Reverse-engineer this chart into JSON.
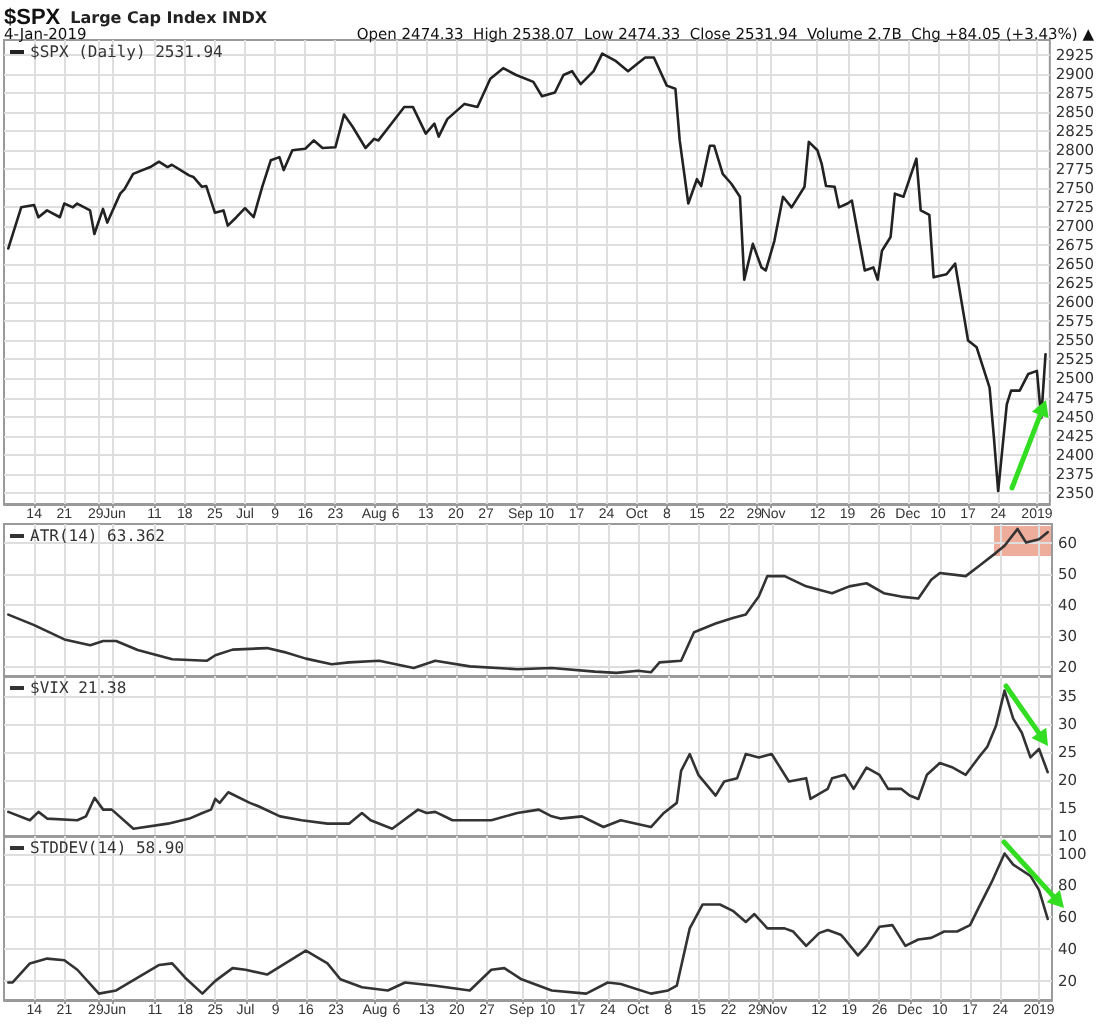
{
  "chart_data": [
    {
      "type": "line",
      "title": "$SPX",
      "subtitle": "Large Cap Index INDX",
      "annotations": [
        "4-Jan-2019",
        "Open 2474.33  High 2538.07  Low 2474.33  Close 2531.94  Volume 2.7B  Chg +84.05 (+3.43%) ▲"
      ],
      "legend": "top left",
      "grid": true,
      "xlim": [
        "2018-05-07",
        "2019-01-05"
      ],
      "xticks": [
        {
          "value": "2018-05-14",
          "label": "14"
        },
        {
          "value": "2018-05-21",
          "label": "21"
        },
        {
          "value": "2018-05-29",
          "label": "29"
        },
        {
          "value": "2018-06-01",
          "label": "Jun"
        },
        {
          "value": "2018-06-11",
          "label": "11"
        },
        {
          "value": "2018-06-18",
          "label": "18"
        },
        {
          "value": "2018-06-25",
          "label": "25"
        },
        {
          "value": "2018-07-02",
          "label": "Jul"
        },
        {
          "value": "2018-07-09",
          "label": "9"
        },
        {
          "value": "2018-07-16",
          "label": "16"
        },
        {
          "value": "2018-07-23",
          "label": "23"
        },
        {
          "value": "2018-08-01",
          "label": "Aug"
        },
        {
          "value": "2018-08-06",
          "label": "6"
        },
        {
          "value": "2018-08-13",
          "label": "13"
        },
        {
          "value": "2018-08-20",
          "label": "20"
        },
        {
          "value": "2018-08-27",
          "label": "27"
        },
        {
          "value": "2018-09-04",
          "label": "Sep"
        },
        {
          "value": "2018-09-10",
          "label": "10"
        },
        {
          "value": "2018-09-17",
          "label": "17"
        },
        {
          "value": "2018-09-24",
          "label": "24"
        },
        {
          "value": "2018-10-01",
          "label": "Oct"
        },
        {
          "value": "2018-10-08",
          "label": "8"
        },
        {
          "value": "2018-10-15",
          "label": "15"
        },
        {
          "value": "2018-10-22",
          "label": "22"
        },
        {
          "value": "2018-10-29",
          "label": "29"
        },
        {
          "value": "2018-11-01",
          "label": "Nov"
        },
        {
          "value": "2018-11-12",
          "label": "12"
        },
        {
          "value": "2018-11-19",
          "label": "19"
        },
        {
          "value": "2018-11-26",
          "label": "26"
        },
        {
          "value": "2018-12-03",
          "label": "Dec"
        },
        {
          "value": "2018-12-10",
          "label": "10"
        },
        {
          "value": "2018-12-17",
          "label": "17"
        },
        {
          "value": "2018-12-24",
          "label": "24"
        },
        {
          "value": "2019-01-02",
          "label": "2019"
        }
      ],
      "ylim": [
        2335,
        2945
      ],
      "yticks": [
        2350,
        2375,
        2400,
        2425,
        2450,
        2475,
        2500,
        2525,
        2550,
        2575,
        2600,
        2625,
        2650,
        2675,
        2700,
        2725,
        2750,
        2775,
        2800,
        2825,
        2850,
        2875,
        2900,
        2925
      ],
      "series": [
        {
          "name": "$SPX (Daily) 2531.94",
          "color": "#222222",
          "x": [
            "2018-05-08",
            "2018-05-11",
            "2018-05-14",
            "2018-05-15",
            "2018-05-17",
            "2018-05-20",
            "2018-05-21",
            "2018-05-23",
            "2018-05-24",
            "2018-05-27",
            "2018-05-28",
            "2018-05-30",
            "2018-05-31",
            "2018-06-03",
            "2018-06-04",
            "2018-06-06",
            "2018-06-10",
            "2018-06-12",
            "2018-06-14",
            "2018-06-15",
            "2018-06-19",
            "2018-06-20",
            "2018-06-22",
            "2018-06-23",
            "2018-06-25",
            "2018-06-27",
            "2018-06-28",
            "2018-06-30",
            "2018-07-02",
            "2018-07-04",
            "2018-07-06",
            "2018-07-08",
            "2018-07-10",
            "2018-07-11",
            "2018-07-13",
            "2018-07-16",
            "2018-07-18",
            "2018-07-20",
            "2018-07-23",
            "2018-07-25",
            "2018-07-27",
            "2018-07-30",
            "2018-08-01",
            "2018-08-02",
            "2018-08-05",
            "2018-08-08",
            "2018-08-10",
            "2018-08-13",
            "2018-08-15",
            "2018-08-16",
            "2018-08-18",
            "2018-08-22",
            "2018-08-25",
            "2018-08-28",
            "2018-08-31",
            "2018-09-03",
            "2018-09-07",
            "2018-09-09",
            "2018-09-12",
            "2018-09-14",
            "2018-09-16",
            "2018-09-18",
            "2018-09-21",
            "2018-09-23",
            "2018-09-26",
            "2018-09-29",
            "2018-10-01",
            "2018-10-03",
            "2018-10-05",
            "2018-10-08",
            "2018-10-10",
            "2018-10-11",
            "2018-10-13",
            "2018-10-15",
            "2018-10-16",
            "2018-10-18",
            "2018-10-19",
            "2018-10-21",
            "2018-10-23",
            "2018-10-25",
            "2018-10-26",
            "2018-10-28",
            "2018-10-30",
            "2018-10-31",
            "2018-11-02",
            "2018-11-04",
            "2018-11-06",
            "2018-11-09",
            "2018-11-10",
            "2018-11-12",
            "2018-11-13",
            "2018-11-14",
            "2018-11-16",
            "2018-11-17",
            "2018-11-19",
            "2018-11-20",
            "2018-11-21",
            "2018-11-23",
            "2018-11-25",
            "2018-11-26",
            "2018-11-27",
            "2018-11-29",
            "2018-11-30",
            "2018-12-02",
            "2018-12-05",
            "2018-12-06",
            "2018-12-08",
            "2018-12-09",
            "2018-12-12",
            "2018-12-14",
            "2018-12-17",
            "2018-12-19",
            "2018-12-22",
            "2018-12-23",
            "2018-12-24",
            "2018-12-26",
            "2018-12-27",
            "2018-12-29",
            "2018-12-31",
            "2019-01-02",
            "2019-01-03",
            "2019-01-04"
          ],
          "values": [
            2671,
            2725,
            2728,
            2712,
            2721,
            2712,
            2730,
            2725,
            2730,
            2721,
            2690,
            2723,
            2705,
            2743,
            2749,
            2769,
            2778,
            2785,
            2778,
            2781,
            2767,
            2765,
            2752,
            2753,
            2718,
            2721,
            2701,
            2712,
            2724,
            2712,
            2752,
            2787,
            2791,
            2774,
            2800,
            2802,
            2813,
            2803,
            2804,
            2847,
            2831,
            2803,
            2815,
            2813,
            2835,
            2857,
            2857,
            2822,
            2835,
            2818,
            2841,
            2861,
            2857,
            2894,
            2908,
            2899,
            2890,
            2871,
            2876,
            2899,
            2904,
            2887,
            2904,
            2927,
            2918,
            2904,
            2913,
            2922,
            2922,
            2885,
            2881,
            2813,
            2730,
            2762,
            2753,
            2806,
            2806,
            2769,
            2756,
            2739,
            2630,
            2677,
            2646,
            2642,
            2681,
            2739,
            2725,
            2752,
            2811,
            2800,
            2782,
            2753,
            2752,
            2725,
            2730,
            2734,
            2703,
            2642,
            2646,
            2630,
            2668,
            2686,
            2743,
            2739,
            2789,
            2721,
            2715,
            2633,
            2637,
            2651,
            2550,
            2541,
            2488,
            2423,
            2352,
            2466,
            2484,
            2484,
            2506,
            2510,
            2448,
            2531.94
          ]
        }
      ]
    },
    {
      "type": "line",
      "legend": "top left",
      "grid": true,
      "tick_labels": "y",
      "xlim": [
        "2018-05-07",
        "2019-01-05"
      ],
      "xticks": [
        {
          "value": "2018-05-14",
          "label": null
        },
        {
          "value": "2018-05-21",
          "label": null
        },
        {
          "value": "2018-05-29",
          "label": null
        },
        {
          "value": "2018-06-01",
          "label": null
        },
        {
          "value": "2018-06-11",
          "label": null
        },
        {
          "value": "2018-06-18",
          "label": null
        },
        {
          "value": "2018-06-25",
          "label": null
        },
        {
          "value": "2018-07-02",
          "label": null
        },
        {
          "value": "2018-07-09",
          "label": null
        },
        {
          "value": "2018-07-16",
          "label": null
        },
        {
          "value": "2018-07-23",
          "label": null
        },
        {
          "value": "2018-08-01",
          "label": null
        },
        {
          "value": "2018-08-06",
          "label": null
        },
        {
          "value": "2018-08-13",
          "label": null
        },
        {
          "value": "2018-08-20",
          "label": null
        },
        {
          "value": "2018-08-27",
          "label": null
        },
        {
          "value": "2018-09-04",
          "label": null
        },
        {
          "value": "2018-09-10",
          "label": null
        },
        {
          "value": "2018-09-17",
          "label": null
        },
        {
          "value": "2018-09-24",
          "label": null
        },
        {
          "value": "2018-10-01",
          "label": null
        },
        {
          "value": "2018-10-08",
          "label": null
        },
        {
          "value": "2018-10-15",
          "label": null
        },
        {
          "value": "2018-10-22",
          "label": null
        },
        {
          "value": "2018-10-29",
          "label": null
        },
        {
          "value": "2018-11-01",
          "label": null
        },
        {
          "value": "2018-11-12",
          "label": null
        },
        {
          "value": "2018-11-19",
          "label": null
        },
        {
          "value": "2018-11-26",
          "label": null
        },
        {
          "value": "2018-12-03",
          "label": null
        },
        {
          "value": "2018-12-10",
          "label": null
        },
        {
          "value": "2018-12-17",
          "label": null
        },
        {
          "value": "2018-12-24",
          "label": null
        },
        {
          "value": "2019-01-02",
          "label": null
        }
      ],
      "ylim": [
        17,
        66
      ],
      "yticks": [
        20,
        30,
        40,
        50,
        60
      ],
      "series": [
        {
          "name": "ATR(14) 63.362",
          "color": "#333333",
          "x": [
            "2018-05-08",
            "2018-05-14",
            "2018-05-21",
            "2018-05-27",
            "2018-05-30",
            "2018-06-02",
            "2018-06-07",
            "2018-06-15",
            "2018-06-23",
            "2018-06-25",
            "2018-06-29",
            "2018-07-07",
            "2018-07-11",
            "2018-07-16",
            "2018-07-22",
            "2018-07-26",
            "2018-08-02",
            "2018-08-10",
            "2018-08-15",
            "2018-08-23",
            "2018-09-03",
            "2018-09-11",
            "2018-09-21",
            "2018-09-26",
            "2018-10-01",
            "2018-10-04",
            "2018-10-06",
            "2018-10-11",
            "2018-10-14",
            "2018-10-19",
            "2018-10-23",
            "2018-10-26",
            "2018-10-29",
            "2018-10-31",
            "2018-11-04",
            "2018-11-09",
            "2018-11-12",
            "2018-11-15",
            "2018-11-19",
            "2018-11-23",
            "2018-11-27",
            "2018-12-01",
            "2018-12-05",
            "2018-12-08",
            "2018-12-10",
            "2018-12-16",
            "2018-12-19",
            "2018-12-23",
            "2018-12-25",
            "2018-12-28",
            "2018-12-30",
            "2019-01-02",
            "2019-01-04"
          ],
          "values": [
            36.8,
            33.4,
            28.8,
            26.9,
            28.3,
            28.3,
            25.4,
            22.4,
            21.9,
            23.7,
            25.5,
            26,
            24.7,
            22.6,
            20.8,
            21.4,
            21.9,
            19.6,
            21.9,
            20.1,
            19.2,
            19.6,
            18.4,
            18,
            18.7,
            18.2,
            21.4,
            21.9,
            31.1,
            33.9,
            35.7,
            36.8,
            42.6,
            49.2,
            49.2,
            45.9,
            44.8,
            43.7,
            45.9,
            46.9,
            43.7,
            42.6,
            42,
            48,
            50.2,
            49.2,
            52.4,
            56.7,
            59,
            64.4,
            60,
            61.1,
            63.362
          ]
        }
      ]
    },
    {
      "type": "line",
      "legend": "top left",
      "grid": true,
      "tick_labels": "y",
      "xlim": [
        "2018-05-07",
        "2019-01-05"
      ],
      "xticks": [
        {
          "value": "2018-05-14",
          "label": null
        },
        {
          "value": "2018-05-21",
          "label": null
        },
        {
          "value": "2018-05-29",
          "label": null
        },
        {
          "value": "2018-06-01",
          "label": null
        },
        {
          "value": "2018-06-11",
          "label": null
        },
        {
          "value": "2018-06-18",
          "label": null
        },
        {
          "value": "2018-06-25",
          "label": null
        },
        {
          "value": "2018-07-02",
          "label": null
        },
        {
          "value": "2018-07-09",
          "label": null
        },
        {
          "value": "2018-07-16",
          "label": null
        },
        {
          "value": "2018-07-23",
          "label": null
        },
        {
          "value": "2018-08-01",
          "label": null
        },
        {
          "value": "2018-08-06",
          "label": null
        },
        {
          "value": "2018-08-13",
          "label": null
        },
        {
          "value": "2018-08-20",
          "label": null
        },
        {
          "value": "2018-08-27",
          "label": null
        },
        {
          "value": "2018-09-04",
          "label": null
        },
        {
          "value": "2018-09-10",
          "label": null
        },
        {
          "value": "2018-09-17",
          "label": null
        },
        {
          "value": "2018-09-24",
          "label": null
        },
        {
          "value": "2018-10-01",
          "label": null
        },
        {
          "value": "2018-10-08",
          "label": null
        },
        {
          "value": "2018-10-15",
          "label": null
        },
        {
          "value": "2018-10-22",
          "label": null
        },
        {
          "value": "2018-10-29",
          "label": null
        },
        {
          "value": "2018-11-01",
          "label": null
        },
        {
          "value": "2018-11-12",
          "label": null
        },
        {
          "value": "2018-11-19",
          "label": null
        },
        {
          "value": "2018-11-26",
          "label": null
        },
        {
          "value": "2018-12-03",
          "label": null
        },
        {
          "value": "2018-12-10",
          "label": null
        },
        {
          "value": "2018-12-17",
          "label": null
        },
        {
          "value": "2018-12-24",
          "label": null
        },
        {
          "value": "2019-01-02",
          "label": null
        }
      ],
      "ylim": [
        10,
        38.5
      ],
      "yticks": [
        10,
        15,
        20,
        25,
        30,
        35
      ],
      "series": [
        {
          "name": "$VIX 21.38",
          "color": "#333333",
          "x": [
            "2018-05-08",
            "2018-05-13",
            "2018-05-15",
            "2018-05-17",
            "2018-05-24",
            "2018-05-26",
            "2018-05-28",
            "2018-05-30",
            "2018-06-01",
            "2018-06-06",
            "2018-06-14",
            "2018-06-19",
            "2018-06-22",
            "2018-06-24",
            "2018-06-25",
            "2018-06-26",
            "2018-06-28",
            "2018-07-03",
            "2018-07-05",
            "2018-07-10",
            "2018-07-15",
            "2018-07-21",
            "2018-07-26",
            "2018-07-29",
            "2018-07-31",
            "2018-08-05",
            "2018-08-11",
            "2018-08-13",
            "2018-08-15",
            "2018-08-19",
            "2018-08-28",
            "2018-09-03",
            "2018-09-08",
            "2018-09-11",
            "2018-09-13",
            "2018-09-18",
            "2018-09-23",
            "2018-09-27",
            "2018-10-04",
            "2018-10-07",
            "2018-10-10",
            "2018-10-11",
            "2018-10-13",
            "2018-10-15",
            "2018-10-19",
            "2018-10-21",
            "2018-10-24",
            "2018-10-26",
            "2018-10-29",
            "2018-11-01",
            "2018-11-05",
            "2018-11-09",
            "2018-11-10",
            "2018-11-14",
            "2018-11-15",
            "2018-11-18",
            "2018-11-20",
            "2018-11-23",
            "2018-11-26",
            "2018-11-28",
            "2018-12-01",
            "2018-12-03",
            "2018-12-05",
            "2018-12-07",
            "2018-12-10",
            "2018-12-13",
            "2018-12-16",
            "2018-12-19",
            "2018-12-21",
            "2018-12-23",
            "2018-12-25",
            "2018-12-27",
            "2018-12-29",
            "2018-12-31",
            "2019-01-02",
            "2019-01-04"
          ],
          "values": [
            14.3,
            12.8,
            14.3,
            13.1,
            12.8,
            13.5,
            16.8,
            14.7,
            14.7,
            11.3,
            12.2,
            13.1,
            14.1,
            14.7,
            16.6,
            15.9,
            17.8,
            15.9,
            15.3,
            13.5,
            12.8,
            12.2,
            12.2,
            14.1,
            12.8,
            11.3,
            14.7,
            14.1,
            14.3,
            12.8,
            12.8,
            14.1,
            14.7,
            13.5,
            13.1,
            13.5,
            11.6,
            12.8,
            11.6,
            14.1,
            15.9,
            21.6,
            24.6,
            20.9,
            17.2,
            19.7,
            20.3,
            24.6,
            24,
            24.6,
            19.7,
            20.3,
            16.6,
            18.4,
            20.3,
            20.9,
            18.4,
            22.2,
            20.9,
            18.4,
            18.4,
            17.2,
            16.6,
            20.9,
            23,
            22.2,
            20.9,
            24,
            25.9,
            29.6,
            35.9,
            30.9,
            28.4,
            24,
            25.5,
            21.38
          ]
        }
      ]
    },
    {
      "type": "line",
      "legend": "top left",
      "grid": true,
      "xlim": [
        "2018-05-07",
        "2019-01-05"
      ],
      "xticks": [
        {
          "value": "2018-05-14",
          "label": "14"
        },
        {
          "value": "2018-05-21",
          "label": "21"
        },
        {
          "value": "2018-05-29",
          "label": "29"
        },
        {
          "value": "2018-06-01",
          "label": "Jun"
        },
        {
          "value": "2018-06-11",
          "label": "11"
        },
        {
          "value": "2018-06-18",
          "label": "18"
        },
        {
          "value": "2018-06-25",
          "label": "25"
        },
        {
          "value": "2018-07-02",
          "label": "Jul"
        },
        {
          "value": "2018-07-09",
          "label": "9"
        },
        {
          "value": "2018-07-16",
          "label": "16"
        },
        {
          "value": "2018-07-23",
          "label": "23"
        },
        {
          "value": "2018-08-01",
          "label": "Aug"
        },
        {
          "value": "2018-08-06",
          "label": "6"
        },
        {
          "value": "2018-08-13",
          "label": "13"
        },
        {
          "value": "2018-08-20",
          "label": "20"
        },
        {
          "value": "2018-08-27",
          "label": "27"
        },
        {
          "value": "2018-09-04",
          "label": "Sep"
        },
        {
          "value": "2018-09-10",
          "label": "10"
        },
        {
          "value": "2018-09-17",
          "label": "17"
        },
        {
          "value": "2018-09-24",
          "label": "24"
        },
        {
          "value": "2018-10-01",
          "label": "Oct"
        },
        {
          "value": "2018-10-08",
          "label": "8"
        },
        {
          "value": "2018-10-15",
          "label": "15"
        },
        {
          "value": "2018-10-22",
          "label": "22"
        },
        {
          "value": "2018-10-29",
          "label": "29"
        },
        {
          "value": "2018-11-01",
          "label": "Nov"
        },
        {
          "value": "2018-11-12",
          "label": "12"
        },
        {
          "value": "2018-11-19",
          "label": "19"
        },
        {
          "value": "2018-11-26",
          "label": "26"
        },
        {
          "value": "2018-12-03",
          "label": "Dec"
        },
        {
          "value": "2018-12-10",
          "label": "10"
        },
        {
          "value": "2018-12-17",
          "label": "17"
        },
        {
          "value": "2018-12-24",
          "label": "24"
        },
        {
          "value": "2019-01-02",
          "label": "2019"
        }
      ],
      "ylim": [
        8,
        111
      ],
      "yticks": [
        20,
        40,
        60,
        80,
        100
      ],
      "series": [
        {
          "name": "STDDEV(14) 58.90",
          "color": "#333333",
          "x": [
            "2018-05-08",
            "2018-05-09",
            "2018-05-13",
            "2018-05-17",
            "2018-05-21",
            "2018-05-24",
            "2018-05-29",
            "2018-06-02",
            "2018-06-07",
            "2018-06-12",
            "2018-06-15",
            "2018-06-18",
            "2018-06-22",
            "2018-06-25",
            "2018-06-29",
            "2018-07-02",
            "2018-07-07",
            "2018-07-10",
            "2018-07-16",
            "2018-07-21",
            "2018-07-24",
            "2018-07-29",
            "2018-08-04",
            "2018-08-08",
            "2018-08-15",
            "2018-08-23",
            "2018-08-28",
            "2018-08-31",
            "2018-09-04",
            "2018-09-11",
            "2018-09-19",
            "2018-09-24",
            "2018-09-27",
            "2018-10-04",
            "2018-10-08",
            "2018-10-10",
            "2018-10-13",
            "2018-10-16",
            "2018-10-20",
            "2018-10-23",
            "2018-10-26",
            "2018-10-28",
            "2018-10-31",
            "2018-11-04",
            "2018-11-06",
            "2018-11-09",
            "2018-11-12",
            "2018-11-14",
            "2018-11-17",
            "2018-11-18",
            "2018-11-21",
            "2018-11-23",
            "2018-11-26",
            "2018-11-29",
            "2018-12-02",
            "2018-12-05",
            "2018-12-08",
            "2018-12-11",
            "2018-12-14",
            "2018-12-17",
            "2018-12-19",
            "2018-12-22",
            "2018-12-25",
            "2018-12-27",
            "2018-12-31",
            "2019-01-02",
            "2019-01-04"
          ],
          "values": [
            19,
            19,
            31,
            34,
            33,
            27,
            12,
            14,
            22,
            30,
            31,
            22,
            12,
            20,
            28,
            27,
            24,
            29,
            39,
            31,
            21,
            16,
            14,
            19,
            17,
            14,
            27,
            28,
            21,
            14,
            12,
            19,
            18,
            12,
            14,
            17,
            53,
            68,
            68,
            64,
            57,
            62,
            53,
            53,
            51,
            42,
            50,
            52,
            49,
            46,
            36,
            42,
            54,
            55,
            42,
            46,
            47,
            51,
            51,
            55,
            66,
            82,
            100,
            93,
            86,
            77,
            58.9
          ]
        }
      ]
    }
  ]
}
